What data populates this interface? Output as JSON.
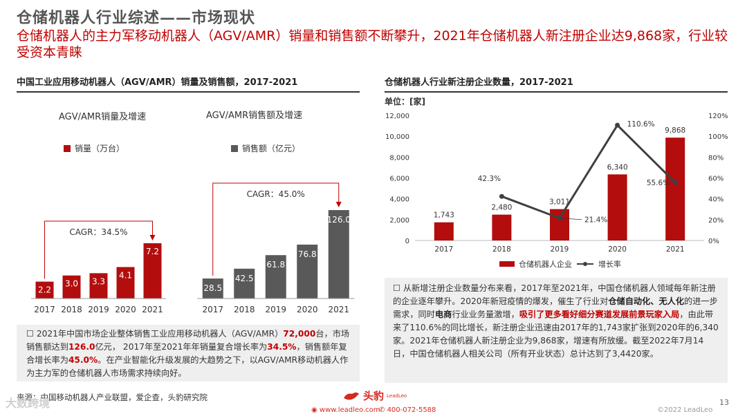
{
  "header": {
    "title": "仓储机器人行业综述——市场现状",
    "subtitle": "仓储机器人的主力军移动机器人（AGV/AMR）销量和销售额不断攀升，2021年仓储机器人新注册企业达9,868家，行业较受资本青睐"
  },
  "left_panel": {
    "heading": "中国工业应用移动机器人（AGV/AMR）销量及销售额，2017-2021",
    "text": {
      "p1": "2021年中国市场企业整体销售工业应用移动机器人（AGV/AMR）",
      "v1": "72,000",
      "p2": "台，市场销售额达到",
      "v2": "126.0",
      "p3": "亿元， 2017年至2021年年销量复合增长率为",
      "v3": "34.5%",
      "p4": "，销售额年复合增长率为",
      "v4": "45.0%",
      "p5": "。在产业智能化升级发展的大趋势之下，以AGV/AMR移动机器人作为主力军的仓储机器人市场需求持续向好。"
    }
  },
  "right_panel": {
    "heading": "仓储机器人行业新注册企业数量，2017-2021",
    "unit": "单位：[家]",
    "text": {
      "p1": "从新增注册企业数量分布来看，2017年至2021年，中国仓储机器人领域每年新注册的企业逐年攀升。2020年新冠疫情的爆发，催生了行业对",
      "k1": "仓储自动化、无人化",
      "p2": "的进一步需求，同时",
      "k2": "电商",
      "p3": "行业业务量激增，",
      "h1": "吸引了更多看好细分赛道发展前景玩家入局",
      "p4": "，由此带来了110.6%的同比增长，新注册企业迅速由2017年的1,743家扩张到2020年的6,340家。2021年仓储机器人新注册企业为9,868家，增速有所放缓。截至2022年7月14日，中国仓储机器人相关公司（所有开业状态）总计达到了3,4420家。"
    }
  },
  "source": "来源：中国移动机器人产业联盟，爱企查，头豹研究院",
  "footer": {
    "brand": "头豹",
    "brand_sub": "LeadLeo",
    "website": "www.leadleo.com",
    "phone": "400-072-5588",
    "copyright": "©2022 LeadLeo",
    "page": "13",
    "watermark": "大数跨境"
  },
  "chart_data": [
    {
      "type": "bar",
      "title": "AGV/AMR销量及增速",
      "legend": "销量（万台）",
      "categories": [
        "2017",
        "2018",
        "2019",
        "2020",
        "2021"
      ],
      "values": [
        2.2,
        3.0,
        3.3,
        4.1,
        7.2
      ],
      "labels": [
        "2.2",
        "3.0",
        "3.3",
        "4.1",
        "7.2"
      ],
      "cagr": "CAGR：34.5%",
      "colors": {
        "bar": "#b30d0d",
        "arrow": "#c00000"
      }
    },
    {
      "type": "bar",
      "title": "AGV/AMR销售额及增速",
      "legend": "销售额（亿元）",
      "categories": [
        "2017",
        "2018",
        "2019",
        "2020",
        "2021"
      ],
      "values": [
        28.5,
        42.5,
        61.8,
        76.8,
        126.0
      ],
      "labels": [
        "28.5",
        "42.5",
        "61.8",
        "76.8",
        "126.0"
      ],
      "cagr": "CAGR：45.0%",
      "colors": {
        "bar": "#595959",
        "arrow": "#c00000"
      }
    },
    {
      "type": "bar+line",
      "title": "仓储机器人行业新注册企业数量，2017-2021",
      "categories": [
        "2017",
        "2018",
        "2019",
        "2020",
        "2021"
      ],
      "series": [
        {
          "name": "仓储机器人企业",
          "values": [
            1743,
            2480,
            3011,
            6340,
            9868
          ],
          "labels": [
            "1,743",
            "2,480",
            "3,011",
            "6,340",
            "9,868"
          ],
          "axis": "left"
        },
        {
          "name": "增长率",
          "values": [
            null,
            42.3,
            21.4,
            110.6,
            55.6
          ],
          "labels": [
            "",
            "42.3%",
            "21.4%",
            "110.6%",
            "55.6%"
          ],
          "axis": "right"
        }
      ],
      "y_left": {
        "min": 0,
        "max": 12000,
        "ticks": [
          "0",
          "2,000",
          "4,000",
          "6,000",
          "8,000",
          "10,000",
          "12,000"
        ]
      },
      "y_right": {
        "min": 0,
        "max": 120,
        "ticks": [
          "0%",
          "20%",
          "40%",
          "60%",
          "80%",
          "100%",
          "120%"
        ]
      },
      "colors": {
        "bar": "#b30d0d",
        "line": "#404040"
      }
    }
  ]
}
